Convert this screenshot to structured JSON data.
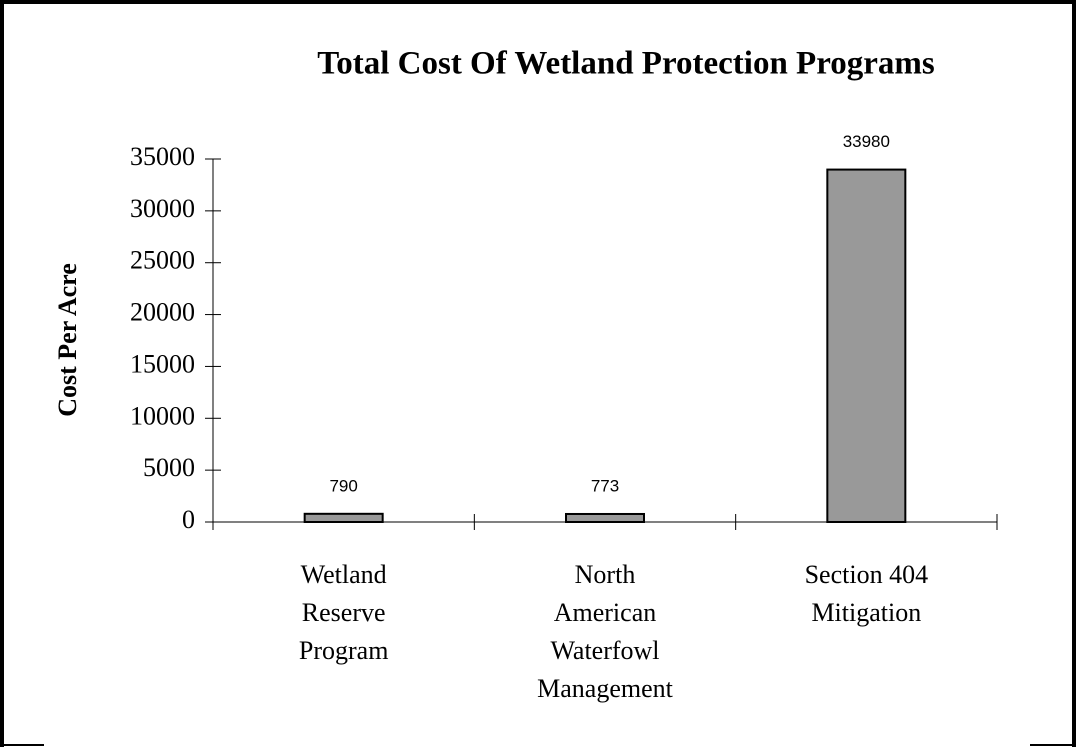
{
  "chart_data": {
    "type": "bar",
    "title": "Total Cost Of Wetland Protection Programs",
    "y_label": "Cost Per Acre",
    "categories": [
      "Wetland Reserve Program",
      "North American Waterfowl Management",
      "Section 404 Mitigation"
    ],
    "values": [
      790,
      773,
      33980
    ],
    "color": "#999999",
    "ylim": [
      0,
      35000
    ],
    "yticks": [
      0,
      5000,
      10000,
      15000,
      20000,
      25000,
      30000,
      35000
    ],
    "grid": false
  }
}
